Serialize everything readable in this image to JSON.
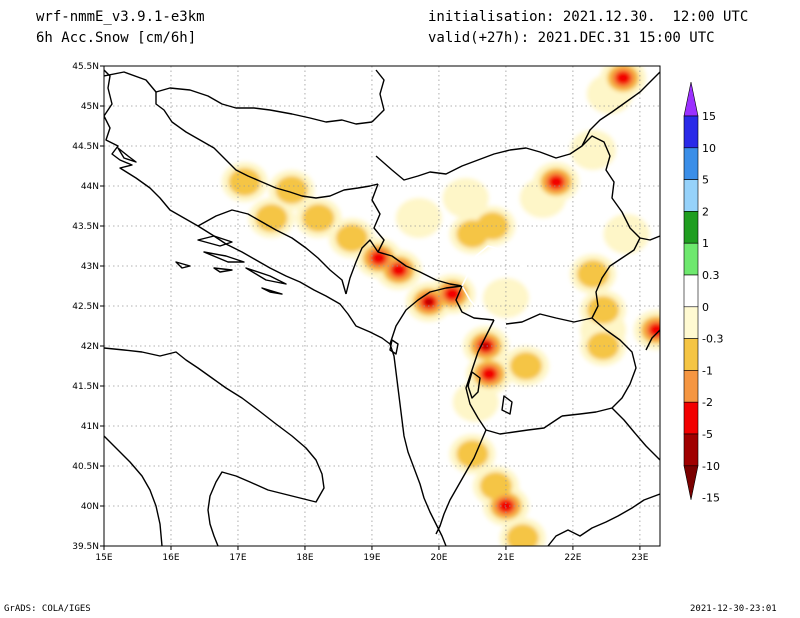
{
  "header": {
    "model": "wrf-nmmE_v3.9.1-e3km",
    "field": "6h Acc.Snow [cm/6h]",
    "init": "initialisation: 2021.12.30.  12:00 UTC",
    "valid": "valid(+27h): 2021.DEC.31 15:00 UTC"
  },
  "footer": {
    "credit": "GrADS: COLA/IGES",
    "timestamp": "2021-12-30-23:01"
  },
  "map": {
    "lon_range": [
      15,
      23.3
    ],
    "lat_range": [
      39.5,
      45.5
    ],
    "lon_ticks": [
      "15E",
      "16E",
      "17E",
      "18E",
      "19E",
      "20E",
      "21E",
      "22E",
      "23E"
    ],
    "lat_ticks": [
      "39.5N",
      "40N",
      "40.5N",
      "41N",
      "41.5N",
      "42N",
      "42.5N",
      "43N",
      "43.5N",
      "44N",
      "44.5N",
      "45N",
      "45.5N"
    ],
    "colors": {
      "light": "#fef6c8",
      "yellow": "#f5c544",
      "orange": "#f59642",
      "red": "#f20000",
      "darkred": "#a00000"
    },
    "blobs": [
      {
        "lon": 22.75,
        "lat": 45.35,
        "level": 4
      },
      {
        "lon": 22.55,
        "lat": 45.15,
        "level": 1
      },
      {
        "lon": 21.75,
        "lat": 44.05,
        "level": 4
      },
      {
        "lon": 21.55,
        "lat": 43.85,
        "level": 1
      },
      {
        "lon": 17.1,
        "lat": 44.05,
        "level": 2
      },
      {
        "lon": 17.8,
        "lat": 43.95,
        "level": 2
      },
      {
        "lon": 17.5,
        "lat": 43.6,
        "level": 2
      },
      {
        "lon": 18.2,
        "lat": 43.6,
        "level": 2
      },
      {
        "lon": 18.7,
        "lat": 43.35,
        "level": 2
      },
      {
        "lon": 19.1,
        "lat": 43.1,
        "level": 4
      },
      {
        "lon": 19.4,
        "lat": 42.95,
        "level": 4
      },
      {
        "lon": 19.7,
        "lat": 43.6,
        "level": 1
      },
      {
        "lon": 20.5,
        "lat": 43.4,
        "level": 2
      },
      {
        "lon": 20.8,
        "lat": 43.5,
        "level": 2
      },
      {
        "lon": 19.85,
        "lat": 42.55,
        "level": 5
      },
      {
        "lon": 20.2,
        "lat": 42.65,
        "level": 4
      },
      {
        "lon": 20.7,
        "lat": 42.0,
        "level": 5
      },
      {
        "lon": 20.75,
        "lat": 41.65,
        "level": 4
      },
      {
        "lon": 20.55,
        "lat": 41.3,
        "level": 1
      },
      {
        "lon": 21.3,
        "lat": 41.75,
        "level": 2
      },
      {
        "lon": 20.5,
        "lat": 40.65,
        "level": 2
      },
      {
        "lon": 20.85,
        "lat": 40.25,
        "level": 2
      },
      {
        "lon": 21.0,
        "lat": 40.0,
        "level": 4
      },
      {
        "lon": 21.25,
        "lat": 39.6,
        "level": 2
      },
      {
        "lon": 22.3,
        "lat": 42.9,
        "level": 2
      },
      {
        "lon": 22.45,
        "lat": 42.45,
        "level": 2
      },
      {
        "lon": 22.45,
        "lat": 42.2,
        "level": 1
      },
      {
        "lon": 22.45,
        "lat": 42.0,
        "level": 2
      },
      {
        "lon": 23.25,
        "lat": 42.2,
        "level": 4
      },
      {
        "lon": 22.8,
        "lat": 43.4,
        "level": 1
      },
      {
        "lon": 22.3,
        "lat": 44.45,
        "level": 1
      },
      {
        "lon": 21.0,
        "lat": 42.6,
        "level": 1
      },
      {
        "lon": 20.4,
        "lat": 43.85,
        "level": 1
      }
    ]
  },
  "colorbar": {
    "labels": [
      "15",
      "10",
      "5",
      "2",
      "1",
      "0.3",
      "0",
      "-0.3",
      "-1",
      "-2",
      "-5",
      "-10",
      "-15"
    ],
    "colors": [
      "#2a2ae8",
      "#3a8ee8",
      "#96d2fa",
      "#1f9e20",
      "#6ee86e",
      "#ffffff",
      "#fffad2",
      "#f5c544",
      "#f59642",
      "#f20000",
      "#a00000"
    ],
    "top_color": "#9b30ff",
    "bottom_color": "#7a0000"
  }
}
